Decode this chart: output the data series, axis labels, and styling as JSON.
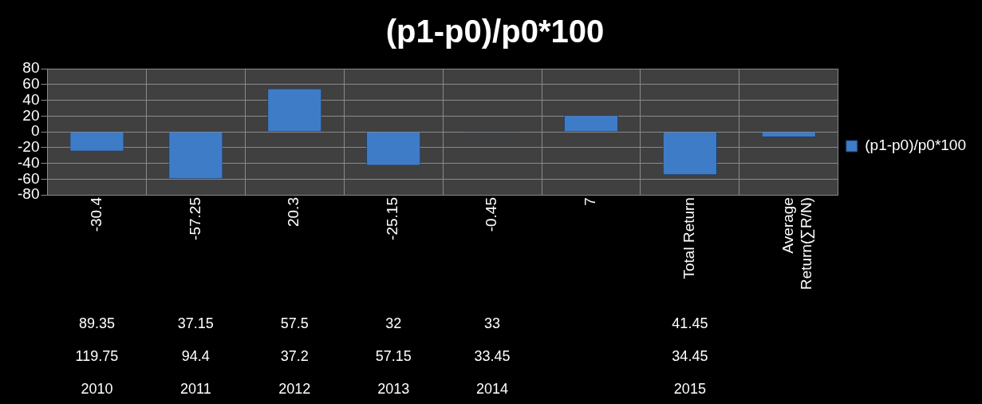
{
  "chart_data": {
    "type": "bar",
    "title": "(p1-p0)/p0*100",
    "categories": [
      "-30.4",
      "-57.25",
      "20.3",
      "-25.15",
      "-0.45",
      "7",
      "Total Return",
      "Average Return(∑R/N)"
    ],
    "series": [
      {
        "name": "(p1-p0)/p0*100",
        "color": "#3f7cc8",
        "values": [
          -25,
          -60,
          55,
          -43,
          -1,
          21,
          -55,
          -7
        ]
      }
    ],
    "ylim": [
      -80,
      80
    ],
    "yticks": [
      -80,
      -60,
      -40,
      -20,
      0,
      20,
      40,
      60,
      80
    ],
    "grid": true,
    "legend": "right",
    "annotations": [
      "89.35",
      "37.15",
      "57.5",
      "32",
      "33",
      "41.45",
      "119.75",
      "94.4",
      "37.2",
      "57.15",
      "33.45",
      "34.45",
      "2010",
      "2011",
      "2012",
      "2013",
      "2014",
      "2015"
    ]
  }
}
